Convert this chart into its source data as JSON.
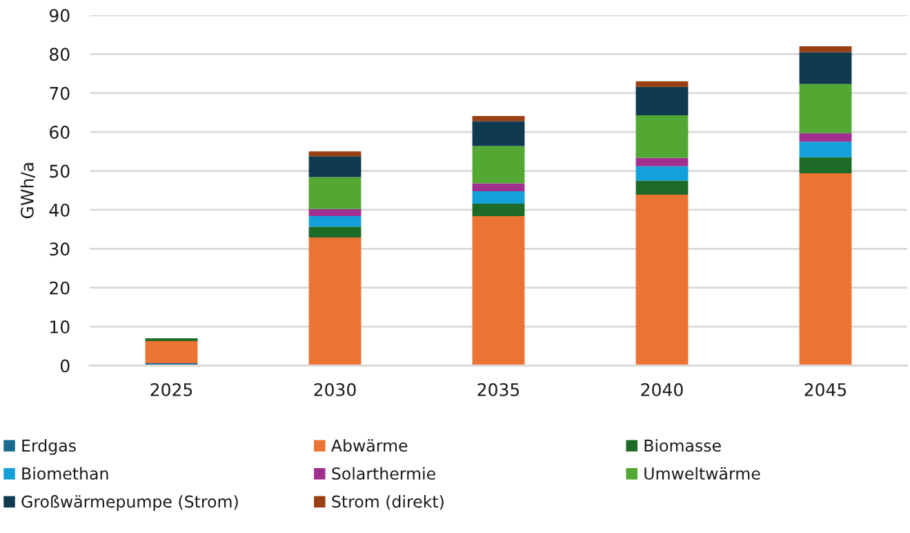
{
  "chart_data": {
    "type": "bar",
    "stacked": true,
    "ylabel": "GWh/a",
    "categories": [
      "2025",
      "2030",
      "2035",
      "2040",
      "2045"
    ],
    "series": [
      {
        "name": "Erdgas",
        "color": "#1b6a8d",
        "values": [
          0.6,
          0,
          0,
          0,
          0
        ]
      },
      {
        "name": "Abwärme",
        "color": "#eb7334",
        "values": [
          5.7,
          32.9,
          38.4,
          43.9,
          49.4
        ]
      },
      {
        "name": "Biomasse",
        "color": "#1e6b27",
        "values": [
          0.7,
          2.8,
          3.2,
          3.6,
          4.1
        ]
      },
      {
        "name": "Biomethan",
        "color": "#14a0d8",
        "values": [
          0,
          2.7,
          3.2,
          3.7,
          4.0
        ]
      },
      {
        "name": "Solarthermie",
        "color": "#a0308f",
        "values": [
          0,
          1.8,
          2.0,
          2.2,
          2.2
        ]
      },
      {
        "name": "Umweltwärme",
        "color": "#52a833",
        "values": [
          0,
          8.2,
          9.6,
          10.9,
          12.6
        ]
      },
      {
        "name": "Großwärmepumpe (Strom)",
        "color": "#0f3a4f",
        "values": [
          0,
          5.4,
          6.4,
          7.3,
          8.2
        ]
      },
      {
        "name": "Strom (direkt)",
        "color": "#9a3f12",
        "values": [
          0,
          1.2,
          1.3,
          1.4,
          1.5
        ]
      }
    ],
    "ylim": [
      0,
      90
    ],
    "yticks": [
      0,
      10,
      20,
      30,
      40,
      50,
      60,
      70,
      80,
      90
    ],
    "grid": "y",
    "legend": "bottom"
  }
}
